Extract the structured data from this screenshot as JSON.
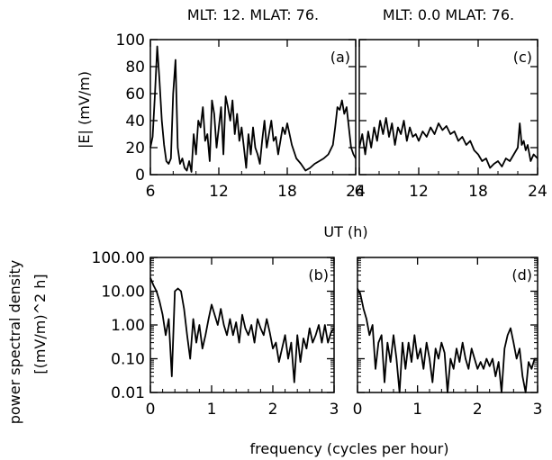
{
  "figure": {
    "ylabel_top": "|E| (mV/m)",
    "xlabel_top": "UT (h)",
    "ylabel_bottom_1": "power spectral density",
    "ylabel_bottom_2": "[(mV/m)^2 h]",
    "xlabel_bottom": "frequency (cycles per hour)"
  },
  "chart_data": [
    {
      "id": "a",
      "type": "line",
      "title": "MLT: 12. MLAT: 76.",
      "panel_label": "(a)",
      "xlabel": "UT (h)",
      "ylabel": "|E| (mV/m)",
      "xlim": [
        6,
        24
      ],
      "ylim": [
        0,
        100
      ],
      "xticks": [
        6,
        12,
        18,
        24
      ],
      "yticks": [
        0,
        20,
        40,
        60,
        80,
        100
      ],
      "color": "#000000",
      "x": [
        6.0,
        6.2,
        6.4,
        6.6,
        6.8,
        7.0,
        7.2,
        7.4,
        7.6,
        7.8,
        8.0,
        8.2,
        8.4,
        8.6,
        8.8,
        9.0,
        9.2,
        9.4,
        9.6,
        9.8,
        10.0,
        10.2,
        10.4,
        10.6,
        10.8,
        11.0,
        11.2,
        11.4,
        11.6,
        11.8,
        12.0,
        12.2,
        12.4,
        12.6,
        12.8,
        13.0,
        13.2,
        13.4,
        13.6,
        13.8,
        14.0,
        14.2,
        14.4,
        14.6,
        14.8,
        15.0,
        15.2,
        15.4,
        15.6,
        15.8,
        16.0,
        16.2,
        16.4,
        16.6,
        16.8,
        17.0,
        17.2,
        17.4,
        17.6,
        17.8,
        18.0,
        18.4,
        18.8,
        19.2,
        19.6,
        20.0,
        20.4,
        20.8,
        21.2,
        21.6,
        22.0,
        22.2,
        22.4,
        22.6,
        22.8,
        23.0,
        23.2,
        23.4,
        23.6,
        23.8,
        24.0
      ],
      "values": [
        20,
        28,
        60,
        95,
        70,
        40,
        22,
        10,
        8,
        12,
        60,
        85,
        20,
        8,
        12,
        5,
        3,
        10,
        2,
        30,
        15,
        40,
        35,
        50,
        25,
        30,
        10,
        55,
        45,
        20,
        35,
        50,
        15,
        58,
        50,
        40,
        55,
        30,
        45,
        25,
        35,
        20,
        5,
        30,
        15,
        35,
        20,
        15,
        8,
        25,
        40,
        20,
        30,
        40,
        25,
        28,
        15,
        25,
        35,
        30,
        38,
        22,
        12,
        8,
        3,
        5,
        8,
        10,
        12,
        15,
        22,
        35,
        50,
        48,
        55,
        45,
        50,
        35,
        20,
        15,
        12
      ]
    },
    {
      "id": "c",
      "type": "line",
      "title": "MLT: 0.0 MLAT: 76.",
      "panel_label": "(c)",
      "xlabel": "UT (h)",
      "xlim": [
        6,
        24
      ],
      "ylim": [
        0,
        100
      ],
      "xticks": [
        6,
        12,
        18,
        24
      ],
      "color": "#000000",
      "x": [
        6.0,
        6.3,
        6.6,
        6.9,
        7.2,
        7.5,
        7.8,
        8.1,
        8.4,
        8.7,
        9.0,
        9.3,
        9.6,
        9.9,
        10.2,
        10.5,
        10.8,
        11.1,
        11.4,
        11.7,
        12.0,
        12.4,
        12.8,
        13.2,
        13.6,
        14.0,
        14.4,
        14.8,
        15.2,
        15.6,
        16.0,
        16.4,
        16.8,
        17.2,
        17.6,
        18.0,
        18.4,
        18.8,
        19.2,
        19.6,
        20.0,
        20.4,
        20.8,
        21.2,
        21.6,
        22.0,
        22.2,
        22.4,
        22.6,
        22.8,
        23.0,
        23.3,
        23.6,
        24.0
      ],
      "values": [
        20,
        30,
        15,
        32,
        20,
        35,
        25,
        40,
        30,
        42,
        28,
        38,
        22,
        35,
        30,
        40,
        25,
        35,
        28,
        30,
        25,
        32,
        28,
        35,
        30,
        38,
        33,
        36,
        30,
        32,
        25,
        28,
        22,
        25,
        18,
        15,
        10,
        12,
        5,
        8,
        10,
        6,
        12,
        10,
        15,
        20,
        38,
        22,
        25,
        18,
        22,
        10,
        15,
        12
      ]
    },
    {
      "id": "b",
      "type": "line",
      "panel_label": "(b)",
      "xlabel": "frequency (cycles per hour)",
      "ylabel": "power spectral density [(mV/m)^2 h]",
      "scale": "log",
      "xlim": [
        0,
        3
      ],
      "ylim": [
        0.01,
        100
      ],
      "xticks": [
        0,
        1,
        2,
        3
      ],
      "yticks": [
        0.01,
        0.1,
        1,
        10,
        100
      ],
      "ytick_labels": [
        "0.01",
        "0.10",
        "1.00",
        "10.00",
        "100.00"
      ],
      "color": "#000000",
      "x": [
        0.0,
        0.05,
        0.1,
        0.15,
        0.2,
        0.25,
        0.3,
        0.35,
        0.4,
        0.45,
        0.5,
        0.55,
        0.6,
        0.65,
        0.7,
        0.75,
        0.8,
        0.85,
        0.9,
        0.95,
        1.0,
        1.05,
        1.1,
        1.15,
        1.2,
        1.25,
        1.3,
        1.35,
        1.4,
        1.45,
        1.5,
        1.55,
        1.6,
        1.65,
        1.7,
        1.75,
        1.8,
        1.85,
        1.9,
        1.95,
        2.0,
        2.05,
        2.1,
        2.15,
        2.2,
        2.25,
        2.3,
        2.35,
        2.4,
        2.45,
        2.5,
        2.55,
        2.6,
        2.65,
        2.7,
        2.75,
        2.8,
        2.85,
        2.9,
        2.95,
        3.0
      ],
      "values": [
        25,
        15,
        10,
        5,
        2,
        0.5,
        1.5,
        0.03,
        10,
        12,
        10,
        3,
        0.5,
        0.1,
        1.5,
        0.3,
        1.0,
        0.2,
        0.5,
        1.5,
        4,
        2,
        1.0,
        3.0,
        1.0,
        0.5,
        1.5,
        0.5,
        1.2,
        0.3,
        2.0,
        0.8,
        0.5,
        1.0,
        0.3,
        1.5,
        0.8,
        0.5,
        1.5,
        0.6,
        0.2,
        0.3,
        0.08,
        0.2,
        0.5,
        0.1,
        0.3,
        0.02,
        0.5,
        0.08,
        0.4,
        0.2,
        0.8,
        0.3,
        0.5,
        1.0,
        0.3,
        1.0,
        0.3,
        0.6,
        0.8
      ]
    },
    {
      "id": "d",
      "type": "line",
      "panel_label": "(d)",
      "xlabel": "frequency (cycles per hour)",
      "scale": "log",
      "xlim": [
        0,
        3
      ],
      "ylim": [
        0.01,
        100
      ],
      "xticks": [
        0,
        1,
        2,
        3
      ],
      "color": "#000000",
      "x": [
        0.0,
        0.05,
        0.1,
        0.15,
        0.2,
        0.25,
        0.3,
        0.35,
        0.4,
        0.45,
        0.5,
        0.55,
        0.6,
        0.65,
        0.7,
        0.75,
        0.8,
        0.85,
        0.9,
        0.95,
        1.0,
        1.05,
        1.1,
        1.15,
        1.2,
        1.25,
        1.3,
        1.35,
        1.4,
        1.45,
        1.5,
        1.55,
        1.6,
        1.65,
        1.7,
        1.75,
        1.8,
        1.85,
        1.9,
        1.95,
        2.0,
        2.05,
        2.1,
        2.15,
        2.2,
        2.25,
        2.3,
        2.35,
        2.4,
        2.45,
        2.5,
        2.55,
        2.6,
        2.65,
        2.7,
        2.75,
        2.8,
        2.85,
        2.9,
        2.95,
        3.0
      ],
      "values": [
        12,
        8,
        3,
        1.5,
        0.5,
        1.0,
        0.05,
        0.3,
        0.5,
        0.02,
        0.3,
        0.08,
        0.5,
        0.1,
        0.01,
        0.3,
        0.05,
        0.3,
        0.08,
        0.5,
        0.1,
        0.2,
        0.05,
        0.3,
        0.1,
        0.02,
        0.2,
        0.1,
        0.3,
        0.15,
        0.01,
        0.1,
        0.05,
        0.2,
        0.08,
        0.3,
        0.1,
        0.05,
        0.2,
        0.1,
        0.05,
        0.08,
        0.05,
        0.1,
        0.06,
        0.1,
        0.03,
        0.08,
        0.01,
        0.2,
        0.5,
        0.8,
        0.3,
        0.1,
        0.2,
        0.03,
        0.01,
        0.08,
        0.05,
        0.1,
        0.1
      ]
    }
  ]
}
